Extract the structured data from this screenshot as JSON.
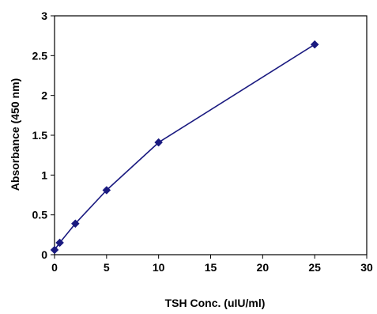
{
  "chart_data": {
    "type": "scatter",
    "title": "",
    "xlabel": "TSH Conc. (uIU/ml)",
    "ylabel": "Absorbance (450 nm)",
    "xlim": [
      0,
      30
    ],
    "ylim": [
      0,
      3
    ],
    "x_ticks": [
      0,
      5,
      10,
      15,
      20,
      25,
      30
    ],
    "y_ticks": [
      0,
      0.5,
      1,
      1.5,
      2,
      2.5,
      3
    ],
    "x_tick_labels": [
      "0",
      "5",
      "10",
      "15",
      "20",
      "25",
      "30"
    ],
    "y_tick_labels": [
      "0",
      "0.5",
      "1",
      "1.5",
      "2",
      "2.5",
      "3"
    ],
    "grid": false,
    "legend": "none",
    "marker": "diamond",
    "connected": true,
    "series": [
      {
        "color": "#1a1a80",
        "points": [
          {
            "x": 0,
            "y": 0.06
          },
          {
            "x": 0.5,
            "y": 0.15
          },
          {
            "x": 2,
            "y": 0.39
          },
          {
            "x": 5,
            "y": 0.81
          },
          {
            "x": 10,
            "y": 1.41
          },
          {
            "x": 25,
            "y": 2.64
          }
        ]
      }
    ]
  }
}
